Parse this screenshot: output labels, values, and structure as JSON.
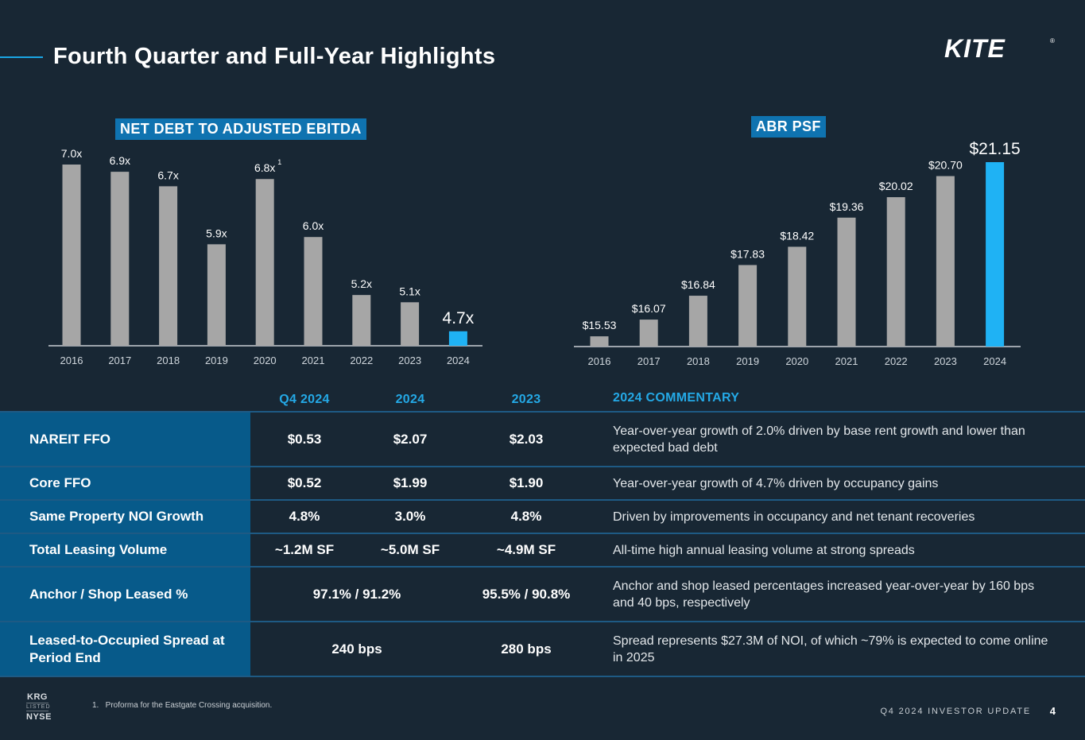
{
  "header": {
    "title": "Fourth Quarter and Full-Year Highlights",
    "logo_text": "KITE",
    "logo_mark": "®"
  },
  "colors": {
    "background": "#182734",
    "accent_blue": "#1aa6e4",
    "badge_blue": "#0f73b0",
    "row_label_blue": "#075a8a",
    "bar_gray": "#a6a6a6",
    "bar_highlight": "#1fb2f4"
  },
  "chart_data": [
    {
      "type": "bar",
      "title": "NET DEBT TO ADJUSTED EBITDA",
      "categories": [
        "2016",
        "2017",
        "2018",
        "2019",
        "2020",
        "2021",
        "2022",
        "2023",
        "2024"
      ],
      "values": [
        7.0,
        6.9,
        6.7,
        5.9,
        6.8,
        6.0,
        5.2,
        5.1,
        4.7
      ],
      "labels": [
        "7.0x",
        "6.9x",
        "6.7x",
        "5.9x",
        "6.8x",
        "6.0x",
        "5.2x",
        "5.1x",
        "4.7x"
      ],
      "footnote_markers": [
        "",
        "",
        "",
        "",
        "1",
        "",
        "",
        "",
        ""
      ],
      "highlight_index": 8,
      "xlabel": "",
      "ylabel": "",
      "ylim": [
        4.5,
        7.0
      ],
      "grid": false,
      "legend": "none"
    },
    {
      "type": "bar",
      "title": "ABR PSF",
      "categories": [
        "2016",
        "2017",
        "2018",
        "2019",
        "2020",
        "2021",
        "2022",
        "2023",
        "2024"
      ],
      "values": [
        15.53,
        16.07,
        16.84,
        17.83,
        18.42,
        19.36,
        20.02,
        20.7,
        21.15
      ],
      "labels": [
        "$15.53",
        "$16.07",
        "$16.84",
        "$17.83",
        "$18.42",
        "$19.36",
        "$20.02",
        "$20.70",
        "$21.15"
      ],
      "highlight_index": 8,
      "xlabel": "",
      "ylabel": "",
      "ylim": [
        15.2,
        21.15
      ],
      "grid": false,
      "legend": "none"
    }
  ],
  "table": {
    "columns": [
      "Q4 2024",
      "2024",
      "2023",
      "2024 COMMENTARY"
    ],
    "rows": [
      {
        "label": "NAREIT FFO",
        "q4": "$0.53",
        "fy24": "$2.07",
        "fy23": "$2.03",
        "comment": "Year-over-year growth of 2.0% driven by base rent growth and lower than expected bad debt"
      },
      {
        "label": "Core FFO",
        "q4": "$0.52",
        "fy24": "$1.99",
        "fy23": "$1.90",
        "comment": "Year-over-year growth of 4.7% driven by occupancy gains"
      },
      {
        "label": "Same Property NOI Growth",
        "q4": "4.8%",
        "fy24": "3.0%",
        "fy23": "4.8%",
        "comment": "Driven by improvements in occupancy and net tenant recoveries"
      },
      {
        "label": "Total Leasing Volume",
        "q4": "~1.2M SF",
        "fy24": "~5.0M SF",
        "fy23": "~4.9M SF",
        "comment": "All-time high annual leasing volume at strong spreads"
      },
      {
        "label": "Anchor / Shop Leased %",
        "merged": "97.1% / 91.2%",
        "fy23": "95.5% / 90.8%",
        "comment": "Anchor and shop leased percentages increased year-over-year by 160 bps and 40 bps, respectively"
      },
      {
        "label": "Leased-to-Occupied Spread at Period End",
        "merged": "240 bps",
        "fy23": "280 bps",
        "comment": "Spread represents $27.3M of NOI, of which ~79% is expected to come online in 2025"
      }
    ]
  },
  "footer": {
    "ticker": "KRG",
    "listed": "LISTED",
    "exchange": "NYSE",
    "footnote": "1.   Proforma for the Eastgate Crossing acquisition.",
    "deck_name": "Q4 2024 INVESTOR UPDATE",
    "page_number": "4"
  }
}
